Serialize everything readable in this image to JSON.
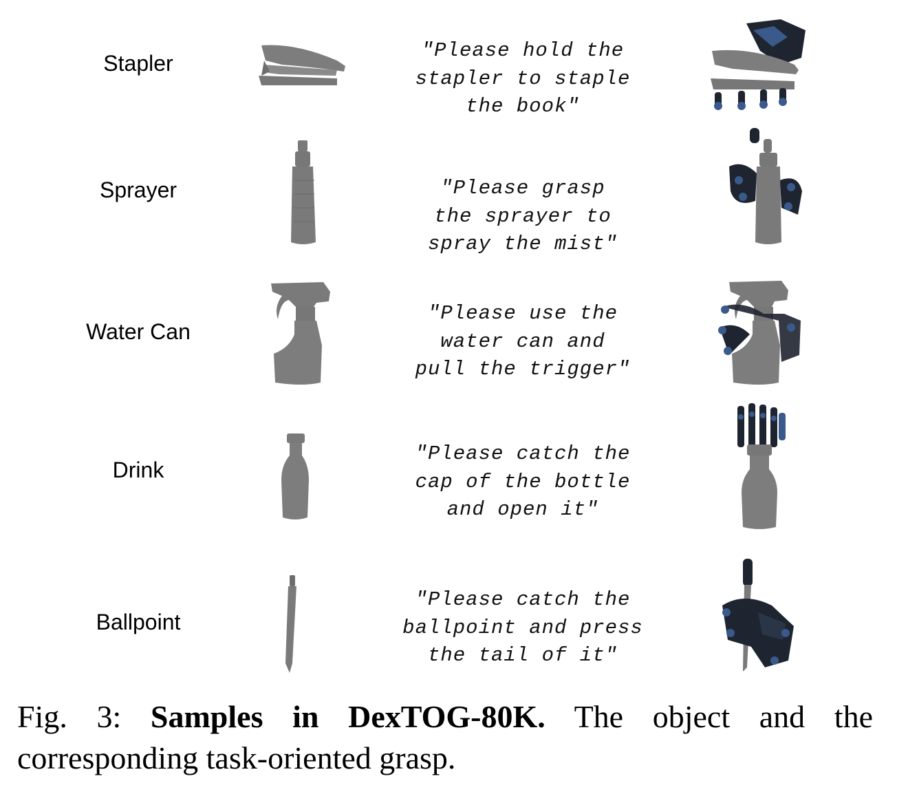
{
  "rows": [
    {
      "object": "Stapler",
      "instruction": "\"Please hold the\nstapler to staple\nthe book\""
    },
    {
      "object": "Sprayer",
      "instruction": "\"Please grasp\nthe sprayer to\nspray the mist\""
    },
    {
      "object": "Water Can",
      "instruction": "\"Please use the\nwater can and\npull the trigger\""
    },
    {
      "object": "Drink",
      "instruction": "\"Please catch the\ncap of the bottle\nand open it\""
    },
    {
      "object": "Ballpoint",
      "instruction": "\"Please catch the\nballpoint and press\nthe tail of it\""
    }
  ],
  "caption": {
    "prefix": "Fig. 3: ",
    "bold": "Samples in DexTOG-80K.",
    "rest": " The object and the corresponding task-oriented grasp."
  },
  "colors": {
    "object_gray": "#7a7a7a",
    "hand_dark": "#1e2430",
    "hand_blue": "#3a5a8c"
  }
}
